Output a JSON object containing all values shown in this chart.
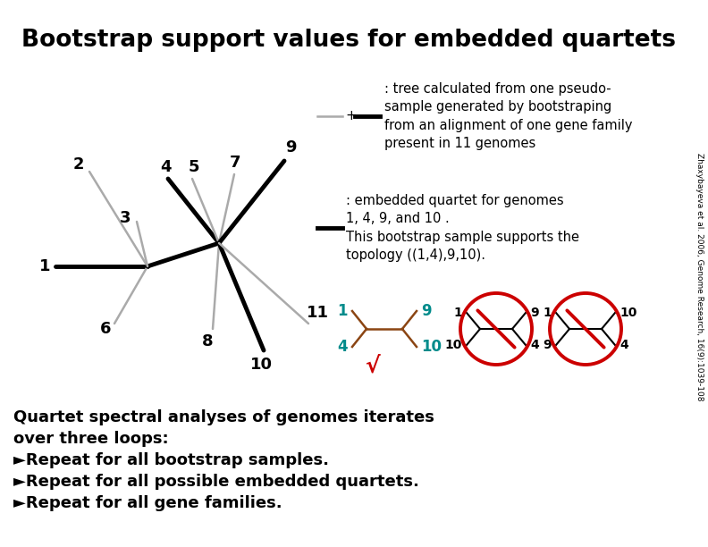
{
  "title": "Bootstrap support values for embedded quartets",
  "background_color": "#ffffff",
  "title_fontsize": 19,
  "tree_thick_color": "#000000",
  "tree_thin_color": "#aaaaaa",
  "teal_color": "#008B8B",
  "red_color": "#cc0000",
  "brown_color": "#8B4513",
  "legend_text1": ": tree calculated from one pseudo-\nsample generated by bootstraping\nfrom an alignment of one gene family\npresent in 11 genomes",
  "legend_text2": ": embedded quartet for genomes\n1, 4, 9, and 10 .\nThis bootstrap sample supports the\ntopology ((1,4),9,10).",
  "bottom_text_line0": "Quartet spectral analyses of genomes iterates",
  "bottom_text_line1": "over three loops:",
  "bottom_text_line2": "►Repeat for all bootstrap samples.",
  "bottom_text_line3": "►Repeat for all possible embedded quartets.",
  "bottom_text_line4": "►Repeat for all gene families.",
  "side_text": "Zhaxybayeva et al. 2006, Genome Research, 16(9):1039-108"
}
